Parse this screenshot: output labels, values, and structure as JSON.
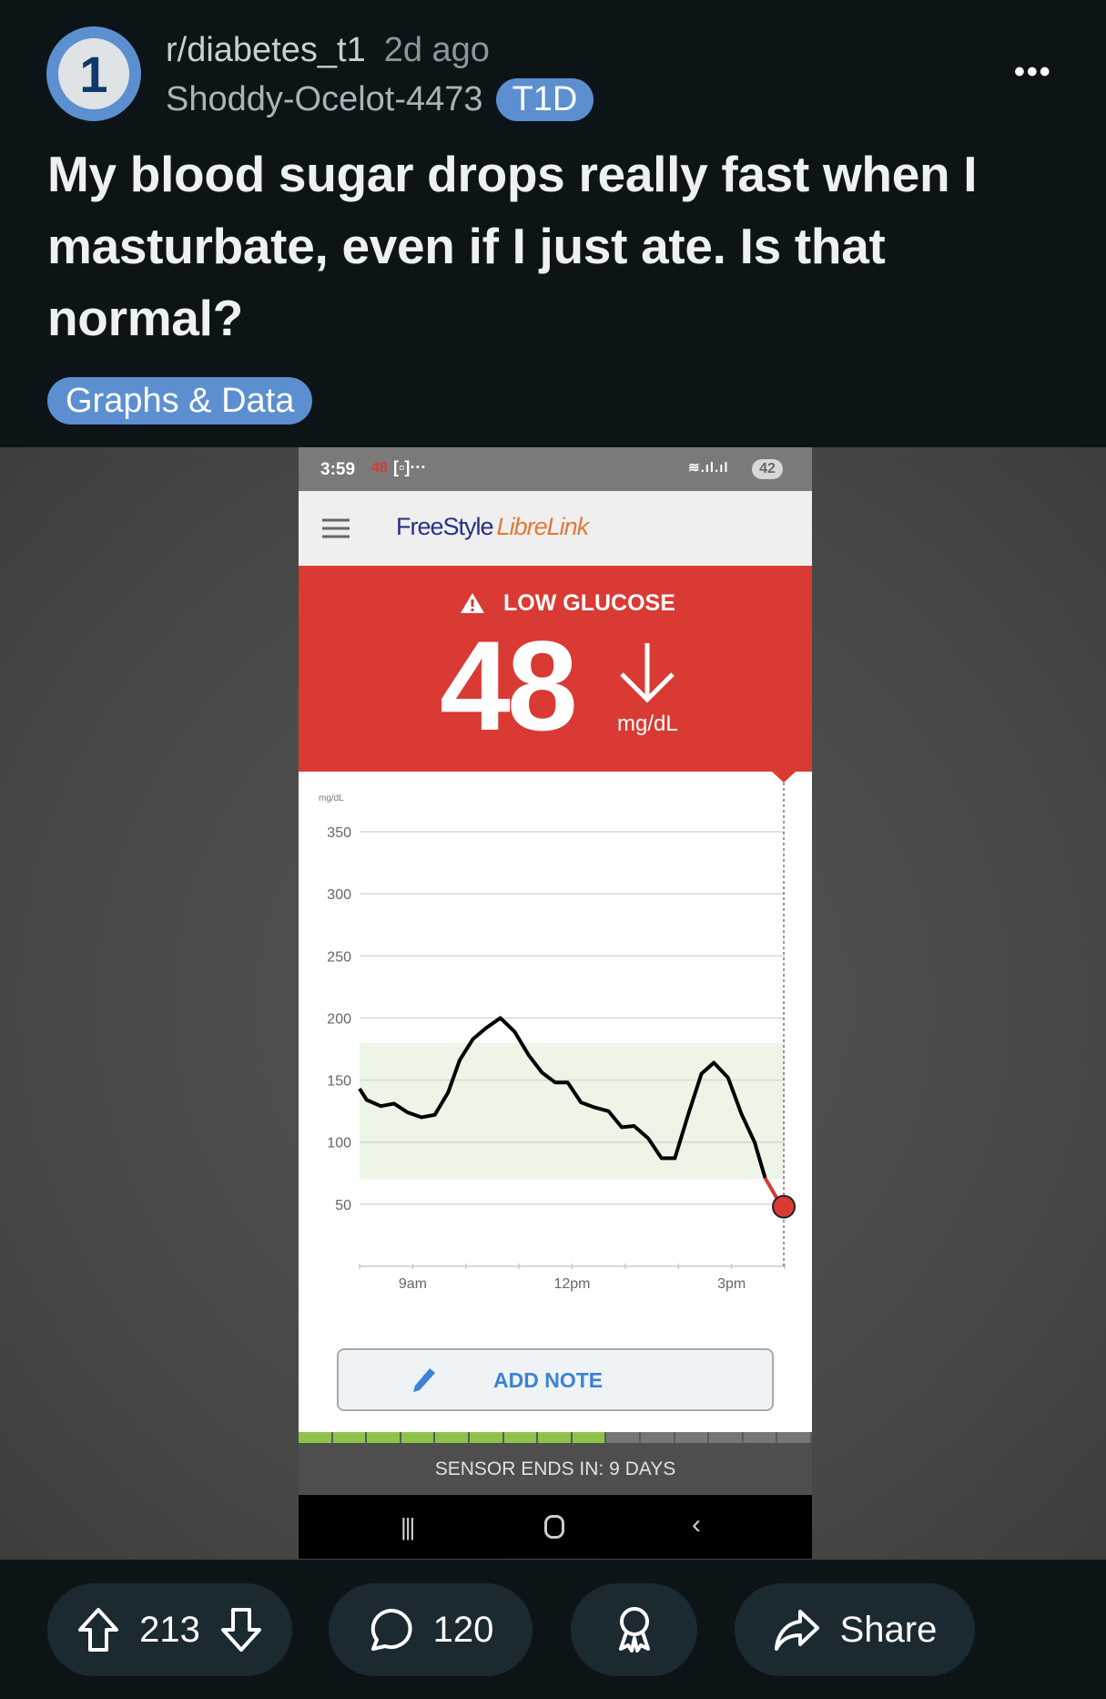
{
  "post": {
    "avatar_text": "1",
    "subreddit": "r/diabetes_t1",
    "time": "2d ago",
    "author": "Shoddy-Ocelot-4473",
    "user_flair": "T1D",
    "more_icon": "more-horizontal-icon",
    "title": "My blood sugar drops really fast when I masturbate, even if I just ate. Is that normal?",
    "post_flair": "Graphs & Data"
  },
  "phone": {
    "status": {
      "time": "3:59",
      "glucose_notif": "48",
      "battery": "42"
    },
    "app_title_a": "FreeStyle",
    "app_title_b": "LibreLink",
    "alert_label": "LOW GLUCOSE",
    "glucose_value": "48",
    "glucose_unit": "mg/dL",
    "trend": "falling",
    "add_note": "ADD NOTE",
    "sensor_text": "SENSOR ENDS IN: 9 DAYS",
    "sensor_segments_filled": 9,
    "sensor_segments_total": 15,
    "colors": {
      "alert_red": "#d93a34",
      "target_range": "#edf5e6",
      "brand_blue": "#2b2f83",
      "brand_orange": "#e07a3a",
      "note_blue": "#3b82d6",
      "sensor_green": "#8dc34a"
    }
  },
  "chart_data": {
    "type": "line",
    "ylabel": "mg/dL",
    "ylim": [
      0,
      350
    ],
    "yticks": [
      "350",
      "300",
      "250",
      "200",
      "150",
      "100",
      "50"
    ],
    "xlim": [
      "08:00",
      "16:00"
    ],
    "xticks": [
      {
        "t": "09:00",
        "label": "9am"
      },
      {
        "t": "12:00",
        "label": "12pm"
      },
      {
        "t": "15:00",
        "label": "3pm"
      }
    ],
    "target_range": [
      70,
      180
    ],
    "low_threshold": 70,
    "grid": true,
    "current": {
      "t": "15:59",
      "value": 48
    },
    "x": [
      "08:00",
      "08:08",
      "08:24",
      "08:39",
      "08:54",
      "09:10",
      "09:25",
      "09:40",
      "09:53",
      "10:08",
      "10:23",
      "10:39",
      "10:55",
      "11:11",
      "11:26",
      "11:41",
      "11:55",
      "12:10",
      "12:25",
      "12:41",
      "12:56",
      "13:10",
      "13:26",
      "13:41",
      "13:56",
      "14:11",
      "14:26",
      "14:40",
      "14:56",
      "15:11",
      "15:26",
      "15:38",
      "15:51",
      "15:59"
    ],
    "values": [
      143,
      134,
      129,
      131,
      124,
      120,
      122,
      140,
      166,
      183,
      192,
      200,
      189,
      170,
      156,
      148,
      148,
      132,
      128,
      125,
      112,
      113,
      103,
      87,
      87,
      122,
      155,
      164,
      152,
      123,
      100,
      71,
      55,
      48
    ]
  },
  "actions": {
    "upvotes": "213",
    "comments": "120",
    "share": "Share"
  }
}
